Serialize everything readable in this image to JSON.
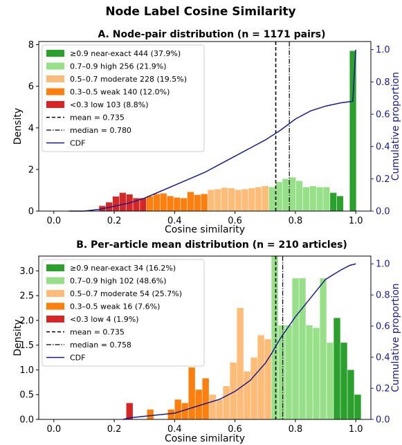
{
  "title": "Node Label Cosine Similarity",
  "colors": {
    "near_exact": "#2ca02c",
    "high": "#98df8a",
    "moderate": "#ffbb78",
    "weak": "#ff7f0e",
    "low": "#d62728",
    "cdf": "#1a1a8c",
    "right_axis": "#1a1a8c"
  },
  "chart_data": [
    {
      "type": "bar",
      "panel": "A",
      "title": "A. Node-pair distribution  (n = 1171 pairs)",
      "xlabel": "Cosine similarity",
      "ylabel": "Density",
      "y2label": "Cumulative proportion",
      "xlim": [
        -0.05,
        1.05
      ],
      "ylim": [
        0,
        8.15
      ],
      "y2lim": [
        0,
        1.05
      ],
      "xticks": [
        "0.0",
        "0.2",
        "0.4",
        "0.6",
        "0.8",
        "1.0"
      ],
      "yticks": [
        "0",
        "2",
        "4",
        "6",
        "8"
      ],
      "y2ticks": [
        "0.0",
        "0.2",
        "0.4",
        "0.6",
        "0.8",
        "1.0"
      ],
      "bin_width": 0.0225,
      "bins": [
        {
          "x": 0.15,
          "y": 0.25,
          "cat": "low"
        },
        {
          "x": 0.1725,
          "y": 0.42,
          "cat": "low"
        },
        {
          "x": 0.195,
          "y": 0.7,
          "cat": "low"
        },
        {
          "x": 0.2175,
          "y": 0.88,
          "cat": "low"
        },
        {
          "x": 0.24,
          "y": 0.8,
          "cat": "low"
        },
        {
          "x": 0.2625,
          "y": 0.62,
          "cat": "low"
        },
        {
          "x": 0.285,
          "y": 0.62,
          "cat": "low"
        },
        {
          "x": 0.3075,
          "y": 0.72,
          "cat": "weak"
        },
        {
          "x": 0.33,
          "y": 0.82,
          "cat": "weak"
        },
        {
          "x": 0.3525,
          "y": 0.85,
          "cat": "weak"
        },
        {
          "x": 0.375,
          "y": 0.72,
          "cat": "weak"
        },
        {
          "x": 0.3975,
          "y": 0.65,
          "cat": "weak"
        },
        {
          "x": 0.42,
          "y": 0.62,
          "cat": "weak"
        },
        {
          "x": 0.4425,
          "y": 0.92,
          "cat": "weak"
        },
        {
          "x": 0.465,
          "y": 0.78,
          "cat": "weak"
        },
        {
          "x": 0.4875,
          "y": 0.82,
          "cat": "weak"
        },
        {
          "x": 0.51,
          "y": 1.02,
          "cat": "moderate"
        },
        {
          "x": 0.5325,
          "y": 1.05,
          "cat": "moderate"
        },
        {
          "x": 0.555,
          "y": 1.12,
          "cat": "moderate"
        },
        {
          "x": 0.5775,
          "y": 1.1,
          "cat": "moderate"
        },
        {
          "x": 0.6,
          "y": 1.02,
          "cat": "moderate"
        },
        {
          "x": 0.6225,
          "y": 1.05,
          "cat": "moderate"
        },
        {
          "x": 0.645,
          "y": 1.1,
          "cat": "moderate"
        },
        {
          "x": 0.6675,
          "y": 1.15,
          "cat": "moderate"
        },
        {
          "x": 0.69,
          "y": 1.2,
          "cat": "moderate"
        },
        {
          "x": 0.7125,
          "y": 1.15,
          "cat": "high"
        },
        {
          "x": 0.735,
          "y": 1.4,
          "cat": "high"
        },
        {
          "x": 0.7575,
          "y": 1.55,
          "cat": "high"
        },
        {
          "x": 0.78,
          "y": 1.62,
          "cat": "high"
        },
        {
          "x": 0.8025,
          "y": 1.45,
          "cat": "high"
        },
        {
          "x": 0.825,
          "y": 1.15,
          "cat": "high"
        },
        {
          "x": 0.8475,
          "y": 1.2,
          "cat": "high"
        },
        {
          "x": 0.87,
          "y": 1.15,
          "cat": "high"
        },
        {
          "x": 0.8925,
          "y": 1.15,
          "cat": "high"
        },
        {
          "x": 0.915,
          "y": 0.88,
          "cat": "near_exact"
        },
        {
          "x": 0.9375,
          "y": 0.72,
          "cat": "near_exact"
        },
        {
          "x": 0.96,
          "y": 0.0,
          "cat": "near_exact"
        },
        {
          "x": 0.98,
          "y": 7.7,
          "cat": "near_exact"
        }
      ],
      "mean": 0.735,
      "median": 0.78,
      "cdf": {
        "x": [
          0.05,
          0.1,
          0.15,
          0.2,
          0.25,
          0.3,
          0.35,
          0.4,
          0.45,
          0.5,
          0.55,
          0.6,
          0.65,
          0.7,
          0.75,
          0.8,
          0.85,
          0.9,
          0.95,
          0.99,
          1.0
        ],
        "y": [
          0.0,
          0.0,
          0.01,
          0.03,
          0.05,
          0.08,
          0.12,
          0.16,
          0.2,
          0.24,
          0.29,
          0.34,
          0.39,
          0.44,
          0.5,
          0.57,
          0.62,
          0.65,
          0.67,
          0.68,
          1.0
        ]
      },
      "legend": [
        {
          "label": "≥0.9  near-exact  444 (37.9%)",
          "kind": "patch",
          "cat": "near_exact"
        },
        {
          "label": "0.7–0.9  high  256 (21.9%)",
          "kind": "patch",
          "cat": "high"
        },
        {
          "label": "0.5–0.7  moderate  228 (19.5%)",
          "kind": "patch",
          "cat": "moderate"
        },
        {
          "label": "0.3–0.5  weak  140 (12.0%)",
          "kind": "patch",
          "cat": "weak"
        },
        {
          "label": "<0.3  low  103 (8.8%)",
          "kind": "patch",
          "cat": "low"
        },
        {
          "label": "mean = 0.735",
          "kind": "dashed"
        },
        {
          "label": "median = 0.780",
          "kind": "dashdot"
        },
        {
          "label": "CDF",
          "kind": "cdf"
        }
      ]
    },
    {
      "type": "bar",
      "panel": "B",
      "title": "B. Per-article mean distribution  (n = 210 articles)",
      "xlabel": "Cosine similarity",
      "ylabel": "Density",
      "y2label": "Cumulative proportion",
      "xlim": [
        -0.05,
        1.05
      ],
      "ylim": [
        0,
        3.3
      ],
      "y2lim": [
        0,
        1.05
      ],
      "xticks": [
        "0.0",
        "0.2",
        "0.4",
        "0.6",
        "0.8",
        "1.0"
      ],
      "yticks": [
        "0.0",
        "0.5",
        "1.0",
        "1.5",
        "2.0",
        "2.5",
        "3.0"
      ],
      "y2ticks": [
        "0.0",
        "0.2",
        "0.4",
        "0.6",
        "0.8",
        "1.0"
      ],
      "bin_width": 0.0229,
      "bins": [
        {
          "x": 0.24,
          "y": 0.33,
          "cat": "low"
        },
        {
          "x": 0.2629,
          "y": 0.0,
          "cat": "low"
        },
        {
          "x": 0.2858,
          "y": 0.0,
          "cat": "low"
        },
        {
          "x": 0.3087,
          "y": 0.2,
          "cat": "weak"
        },
        {
          "x": 0.3316,
          "y": 0.0,
          "cat": "weak"
        },
        {
          "x": 0.3545,
          "y": 0.0,
          "cat": "weak"
        },
        {
          "x": 0.3774,
          "y": 0.2,
          "cat": "weak"
        },
        {
          "x": 0.4003,
          "y": 0.4,
          "cat": "weak"
        },
        {
          "x": 0.4232,
          "y": 0.33,
          "cat": "weak"
        },
        {
          "x": 0.4461,
          "y": 1.05,
          "cat": "weak"
        },
        {
          "x": 0.469,
          "y": 0.6,
          "cat": "weak"
        },
        {
          "x": 0.4919,
          "y": 0.83,
          "cat": "weak"
        },
        {
          "x": 0.5148,
          "y": 0.5,
          "cat": "moderate"
        },
        {
          "x": 0.5377,
          "y": 0.4,
          "cat": "moderate"
        },
        {
          "x": 0.5606,
          "y": 0.67,
          "cat": "moderate"
        },
        {
          "x": 0.5835,
          "y": 1.15,
          "cat": "moderate"
        },
        {
          "x": 0.6064,
          "y": 2.25,
          "cat": "moderate"
        },
        {
          "x": 0.6293,
          "y": 0.97,
          "cat": "moderate"
        },
        {
          "x": 0.6522,
          "y": 1.25,
          "cat": "moderate"
        },
        {
          "x": 0.6751,
          "y": 1.7,
          "cat": "moderate"
        },
        {
          "x": 0.698,
          "y": 1.62,
          "cat": "moderate"
        },
        {
          "x": 0.7209,
          "y": 3.3,
          "cat": "high"
        },
        {
          "x": 0.7438,
          "y": 1.9,
          "cat": "high"
        },
        {
          "x": 0.7667,
          "y": 1.9,
          "cat": "high"
        },
        {
          "x": 0.7896,
          "y": 2.85,
          "cat": "high"
        },
        {
          "x": 0.8125,
          "y": 2.85,
          "cat": "high"
        },
        {
          "x": 0.8354,
          "y": 1.9,
          "cat": "high"
        },
        {
          "x": 0.8583,
          "y": 1.85,
          "cat": "high"
        },
        {
          "x": 0.8812,
          "y": 2.85,
          "cat": "high"
        },
        {
          "x": 0.9041,
          "y": 1.55,
          "cat": "high"
        },
        {
          "x": 0.927,
          "y": 2.05,
          "cat": "near_exact"
        },
        {
          "x": 0.9499,
          "y": 1.55,
          "cat": "near_exact"
        },
        {
          "x": 0.9728,
          "y": 1.0,
          "cat": "near_exact"
        },
        {
          "x": 0.9957,
          "y": 0.5,
          "cat": "near_exact"
        }
      ],
      "mean": 0.735,
      "median": 0.758,
      "cdf": {
        "x": [
          0.23,
          0.25,
          0.3,
          0.35,
          0.4,
          0.45,
          0.5,
          0.55,
          0.6,
          0.65,
          0.7,
          0.72,
          0.75,
          0.8,
          0.85,
          0.9,
          0.95,
          0.98,
          1.0
        ],
        "y": [
          0.0,
          0.01,
          0.02,
          0.03,
          0.04,
          0.07,
          0.1,
          0.13,
          0.18,
          0.25,
          0.36,
          0.42,
          0.52,
          0.66,
          0.78,
          0.9,
          0.96,
          0.99,
          1.0
        ]
      },
      "legend": [
        {
          "label": "≥0.9  near-exact  34 (16.2%)",
          "kind": "patch",
          "cat": "near_exact"
        },
        {
          "label": "0.7–0.9  high  102 (48.6%)",
          "kind": "patch",
          "cat": "high"
        },
        {
          "label": "0.5–0.7  moderate  54 (25.7%)",
          "kind": "patch",
          "cat": "moderate"
        },
        {
          "label": "0.3–0.5  weak  16 (7.6%)",
          "kind": "patch",
          "cat": "weak"
        },
        {
          "label": "<0.3  low  4 (1.9%)",
          "kind": "patch",
          "cat": "low"
        },
        {
          "label": "mean = 0.735",
          "kind": "dashed"
        },
        {
          "label": "median = 0.758",
          "kind": "dashdot"
        },
        {
          "label": "CDF",
          "kind": "cdf"
        }
      ]
    }
  ]
}
